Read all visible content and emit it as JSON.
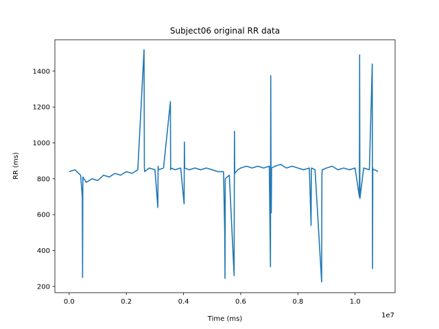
{
  "chart_data": {
    "type": "line",
    "title": "Subject06 original RR data",
    "xlabel": "Time (ms)",
    "ylabel": "RR (ms)",
    "x_offset_text": "1e7",
    "xlim": [
      -0.05,
      1.14
    ],
    "ylim": [
      165,
      1575
    ],
    "x_ticks": [
      0.0,
      0.2,
      0.4,
      0.6,
      0.8,
      1.0
    ],
    "x_tick_labels": [
      "0.0",
      "0.2",
      "0.4",
      "0.6",
      "0.8",
      "1.0"
    ],
    "y_ticks": [
      200,
      400,
      600,
      800,
      1000,
      1200,
      1400
    ],
    "y_tick_labels": [
      "200",
      "400",
      "600",
      "800",
      "1000",
      "1200",
      "1400"
    ],
    "grid": false,
    "line_color": "#1f77b4",
    "series": [
      {
        "x": [
          0.0,
          0.02,
          0.04,
          0.046,
          0.047,
          0.048,
          0.06,
          0.08,
          0.1,
          0.12,
          0.14,
          0.16,
          0.18,
          0.2,
          0.22,
          0.24,
          0.262,
          0.263,
          0.264,
          0.28,
          0.3,
          0.31,
          0.311,
          0.312,
          0.33,
          0.354,
          0.355,
          0.356,
          0.37,
          0.39,
          0.402,
          0.403,
          0.404,
          0.42,
          0.44,
          0.46,
          0.48,
          0.5,
          0.52,
          0.54,
          0.544,
          0.545,
          0.546,
          0.56,
          0.577,
          0.578,
          0.579,
          0.59,
          0.6,
          0.62,
          0.64,
          0.66,
          0.68,
          0.7,
          0.704,
          0.705,
          0.706,
          0.707,
          0.708,
          0.72,
          0.74,
          0.76,
          0.78,
          0.8,
          0.82,
          0.84,
          0.846,
          0.847,
          0.848,
          0.86,
          0.883,
          0.884,
          0.885,
          0.9,
          0.92,
          0.94,
          0.96,
          0.98,
          1.0,
          1.015,
          1.016,
          1.017,
          1.03,
          1.05,
          1.06,
          1.061,
          1.062,
          1.063,
          1.07,
          1.08
        ],
        "y": [
          840,
          850,
          820,
          700,
          250,
          810,
          780,
          800,
          790,
          820,
          810,
          830,
          820,
          840,
          830,
          850,
          1520,
          860,
          840,
          860,
          850,
          640,
          870,
          850,
          860,
          1230,
          850,
          860,
          850,
          860,
          660,
          1005,
          860,
          850,
          860,
          850,
          860,
          850,
          840,
          840,
          500,
          245,
          800,
          820,
          260,
          1065,
          830,
          850,
          860,
          870,
          860,
          870,
          860,
          870,
          310,
          1375,
          820,
          610,
          860,
          870,
          880,
          860,
          870,
          860,
          850,
          860,
          540,
          850,
          860,
          850,
          225,
          820,
          850,
          860,
          870,
          850,
          860,
          850,
          860,
          700,
          1490,
          690,
          860,
          850,
          1440,
          300,
          860,
          850,
          850,
          840
        ]
      }
    ]
  }
}
